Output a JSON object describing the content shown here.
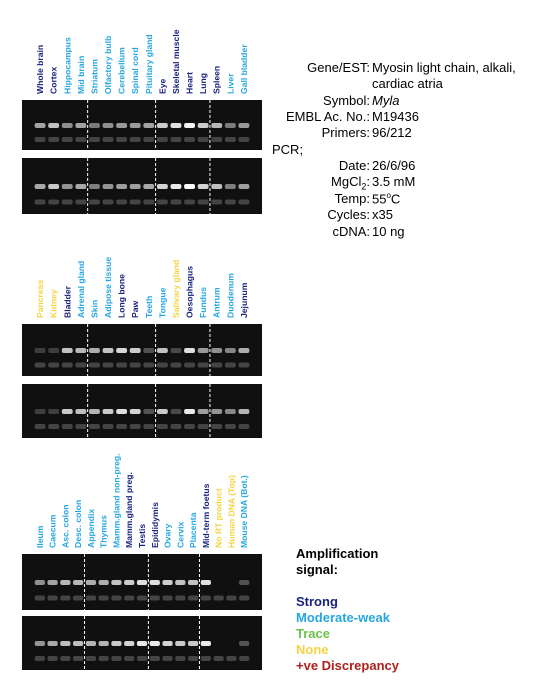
{
  "colors": {
    "strong": "#1a237e",
    "moderate": "#26a7e0",
    "trace": "#6cc24a",
    "none": "#f5d442",
    "discrepancy": "#b0201c"
  },
  "panels": [
    {
      "lanes": [
        {
          "label": "Whole brain",
          "signal": "strong",
          "band": 0.55
        },
        {
          "label": "Cortex",
          "signal": "strong",
          "band": 0.7
        },
        {
          "label": "Hippocampus",
          "signal": "moderate",
          "band": 0.45
        },
        {
          "label": "Mid brain",
          "signal": "moderate",
          "band": 0.55
        },
        {
          "label": "Striatum",
          "signal": "moderate",
          "band": 0.35
        },
        {
          "label": "Olfactory bulb",
          "signal": "moderate",
          "band": 0.45
        },
        {
          "label": "Cerebellum",
          "signal": "moderate",
          "band": 0.5
        },
        {
          "label": "Spinal cord",
          "signal": "moderate",
          "band": 0.5
        },
        {
          "label": "Pituitary gland",
          "signal": "moderate",
          "band": 0.55
        },
        {
          "label": "Eye",
          "signal": "strong",
          "band": 0.75
        },
        {
          "label": "Skeletal muscle",
          "signal": "strong",
          "band": 0.85
        },
        {
          "label": "Heart",
          "signal": "strong",
          "band": 0.95
        },
        {
          "label": "Lung",
          "signal": "strong",
          "band": 0.75
        },
        {
          "label": "Spleen",
          "signal": "strong",
          "band": 0.65
        },
        {
          "label": "Liver",
          "signal": "moderate",
          "band": 0.35
        },
        {
          "label": "Gall bladder",
          "signal": "moderate",
          "band": 0.5
        }
      ],
      "dividers": [
        4,
        9,
        13
      ]
    },
    {
      "lanes": [
        {
          "label": "Pancreas",
          "signal": "none",
          "band": 0.05
        },
        {
          "label": "Kidney",
          "signal": "none",
          "band": 0.05
        },
        {
          "label": "Bladder",
          "signal": "strong",
          "band": 0.7
        },
        {
          "label": "Adrenal gland",
          "signal": "moderate",
          "band": 0.65
        },
        {
          "label": "Skin",
          "signal": "moderate",
          "band": 0.6
        },
        {
          "label": "Adipose tissue",
          "signal": "moderate",
          "band": 0.7
        },
        {
          "label": "Long bone",
          "signal": "strong",
          "band": 0.8
        },
        {
          "label": "Paw",
          "signal": "strong",
          "band": 0.75
        },
        {
          "label": "Teeth",
          "signal": "moderate",
          "band": 0.15
        },
        {
          "label": "Tongue",
          "signal": "moderate",
          "band": 0.7
        },
        {
          "label": "Salivary gland",
          "signal": "none",
          "band": 0.1
        },
        {
          "label": "Oesophagus",
          "signal": "strong",
          "band": 0.85
        },
        {
          "label": "Fundus",
          "signal": "moderate",
          "band": 0.5
        },
        {
          "label": "Antrum",
          "signal": "moderate",
          "band": 0.45
        },
        {
          "label": "Duodenum",
          "signal": "moderate",
          "band": 0.4
        },
        {
          "label": "Jejunum",
          "signal": "strong",
          "band": 0.6
        }
      ],
      "dividers": [
        4,
        9,
        13
      ]
    },
    {
      "lanes": [
        {
          "label": "Ileum",
          "signal": "moderate",
          "band": 0.45
        },
        {
          "label": "Caecum",
          "signal": "moderate",
          "band": 0.55
        },
        {
          "label": "Asc. colon",
          "signal": "moderate",
          "band": 0.65
        },
        {
          "label": "Desc. colon",
          "signal": "moderate",
          "band": 0.65
        },
        {
          "label": "Appendix",
          "signal": "moderate",
          "band": 0.6
        },
        {
          "label": "Thymus",
          "signal": "moderate",
          "band": 0.6
        },
        {
          "label": "Mamm.gland non-preg.",
          "signal": "moderate",
          "band": 0.7
        },
        {
          "label": "Mamm.gland preg.",
          "signal": "strong",
          "band": 0.75
        },
        {
          "label": "Testis",
          "signal": "strong",
          "band": 0.85
        },
        {
          "label": "Epididymis",
          "signal": "strong",
          "band": 0.85
        },
        {
          "label": "Ovary",
          "signal": "moderate",
          "band": 0.75
        },
        {
          "label": "Cervix",
          "signal": "moderate",
          "band": 0.7
        },
        {
          "label": "Placenta",
          "signal": "moderate",
          "band": 0.7
        },
        {
          "label": "Mid-term foetus",
          "signal": "strong",
          "band": 0.85
        },
        {
          "label": "No RT product",
          "signal": "none",
          "band": 0.0
        },
        {
          "label": "Human DNA (Top)",
          "signal": "none",
          "band": 0.0
        },
        {
          "label": "Mouse DNA (Bot.)",
          "signal": "moderate",
          "band": 0.15
        }
      ],
      "dividers": [
        4,
        9,
        13
      ]
    }
  ],
  "info": {
    "gene_label": "Gene/EST:",
    "gene_value_line1": "Myosin light chain, alkali,",
    "gene_value_line2": "cardiac atria",
    "symbol_label": "Symbol:",
    "symbol_value": "Myla",
    "embl_label": "EMBL Ac. No.:",
    "embl_value": "M19436",
    "primers_label": "Primers:",
    "primers_value": "96/212",
    "pcr_heading": "PCR;",
    "date_label": "Date:",
    "date_value": "26/6/96",
    "mgcl_label_main": "MgCl",
    "mgcl_label_sub": "2",
    "mgcl_label_colon": ":",
    "mgcl_value": "3.5 mM",
    "temp_label": "Temp:",
    "temp_value_num": "55",
    "temp_value_sup": "o",
    "temp_value_unit": "C",
    "cycles_label": "Cycles:",
    "cycles_value": "x35",
    "cdna_label": "cDNA:",
    "cdna_value": "10 ng"
  },
  "legend": {
    "title_line1": "Amplification",
    "title_line2": "signal:",
    "strong": "Strong",
    "moderate": "Moderate-weak",
    "trace": "Trace",
    "none": "None",
    "discrepancy": "+ve Discrepancy"
  }
}
